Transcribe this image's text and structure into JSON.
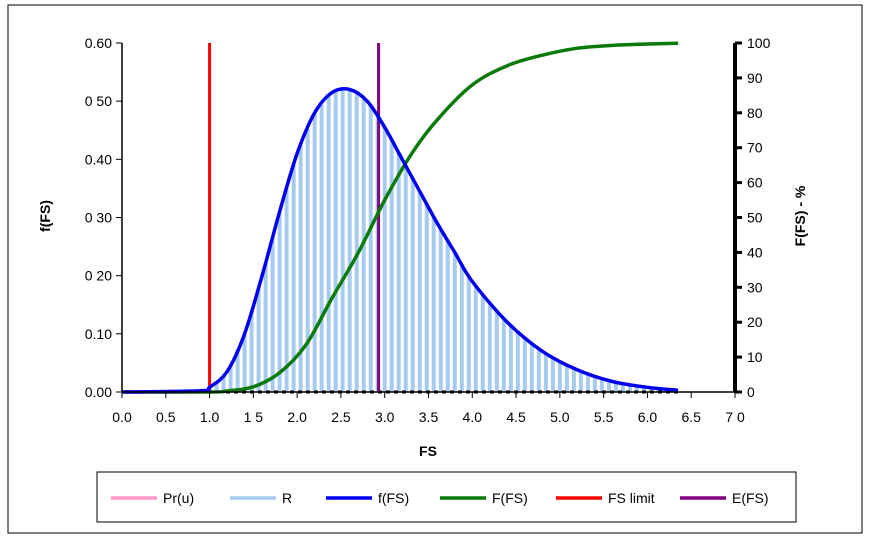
{
  "chart_data": {
    "type": "line",
    "title": "",
    "xlabel": "FS",
    "ylabel": "f(FS)",
    "y2label": "F(FS) - %",
    "xlim": [
      0,
      7
    ],
    "ylim": [
      0,
      0.6
    ],
    "y2lim": [
      0,
      100
    ],
    "x_ticks": [
      "0.0",
      "0.5",
      "1.0",
      "1 5",
      "2.0",
      "2.5",
      "3.0",
      "3.5",
      "4.0",
      "4.5",
      "5.0",
      "5.5",
      "6.0",
      "6.5",
      "7 0"
    ],
    "y_ticks": [
      "0.00",
      "0.10",
      "0 20",
      "0 30",
      "0.40",
      "0 50",
      "0.60"
    ],
    "y2_ticks": [
      "0",
      "10",
      "20",
      "30",
      "40",
      "50",
      "60",
      "70",
      "80",
      "90",
      "100"
    ],
    "grid": false,
    "legend_position": "bottom",
    "colors": {
      "pr_u": "#ff99cc",
      "R": "#a6cbee",
      "f_fs": "#0000ee",
      "F_fs": "#0a7a0a",
      "fs_limit": "#ff0000",
      "e_fs": "#800080"
    },
    "series": [
      {
        "name": "Pr(u)",
        "axis": "left",
        "x": [
          0.0,
          6.35
        ],
        "y": [
          0.0,
          0.0
        ]
      },
      {
        "name": "R",
        "axis": "left",
        "note_style": "vertical bars",
        "x_start": 1.0,
        "x_end": 6.35,
        "step": 0.08
      },
      {
        "name": "f(FS)",
        "axis": "left",
        "x": [
          0.0,
          0.9,
          1.0,
          1.2,
          1.4,
          1.6,
          1.8,
          2.0,
          2.2,
          2.4,
          2.6,
          2.8,
          3.0,
          3.2,
          3.4,
          3.6,
          3.8,
          4.0,
          4.4,
          4.8,
          5.2,
          5.6,
          6.0,
          6.35
        ],
        "y": [
          0.0,
          0.002,
          0.008,
          0.035,
          0.1,
          0.2,
          0.31,
          0.41,
          0.48,
          0.515,
          0.52,
          0.5,
          0.455,
          0.4,
          0.345,
          0.29,
          0.24,
          0.19,
          0.12,
          0.07,
          0.038,
          0.018,
          0.008,
          0.003
        ]
      },
      {
        "name": "F(FS)",
        "axis": "right",
        "x": [
          0.0,
          1.0,
          1.2,
          1.5,
          1.8,
          2.1,
          2.4,
          2.7,
          3.0,
          3.3,
          3.6,
          4.0,
          4.4,
          4.8,
          5.2,
          5.6,
          6.0,
          6.35
        ],
        "y": [
          0.0,
          0.0,
          0.3,
          1.5,
          5.5,
          13.5,
          27,
          40,
          55,
          68,
          78,
          88,
          93.5,
          96.5,
          98.5,
          99.3,
          99.7,
          99.9
        ]
      },
      {
        "name": "FS limit",
        "axis": "left",
        "x": [
          1.0,
          1.0
        ],
        "y": [
          0.0,
          0.6
        ]
      },
      {
        "name": "E(FS)",
        "axis": "left",
        "x": [
          2.93,
          2.93
        ],
        "y": [
          0.0,
          0.6
        ]
      }
    ]
  }
}
